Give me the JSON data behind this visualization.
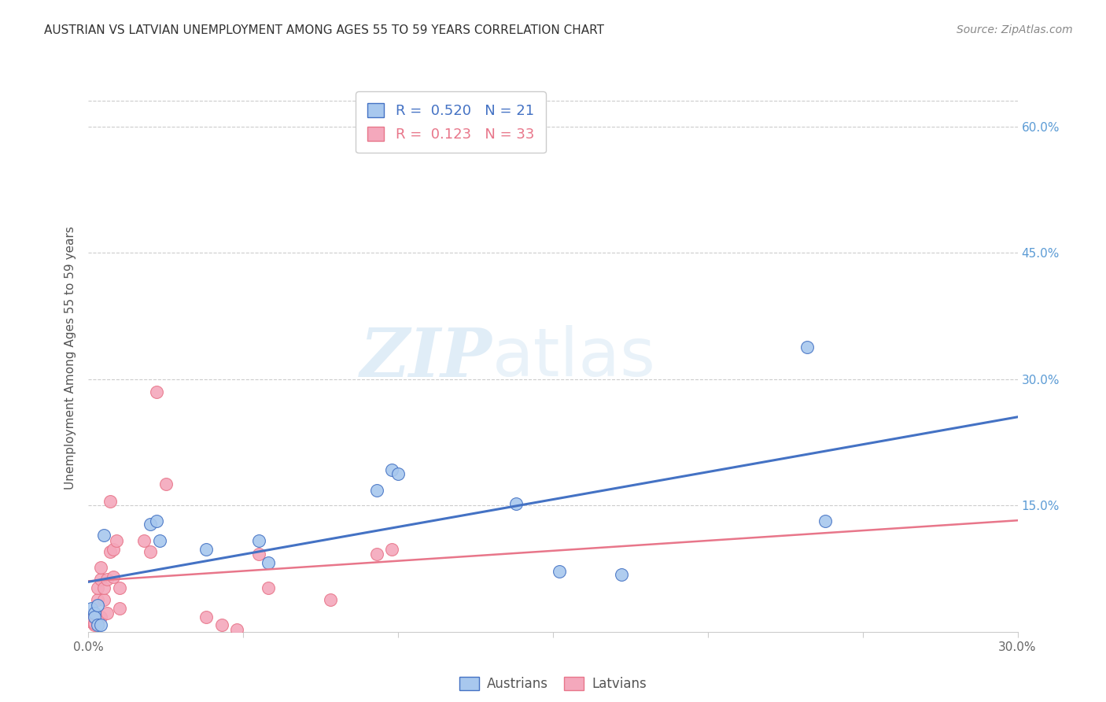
{
  "title": "AUSTRIAN VS LATVIAN UNEMPLOYMENT AMONG AGES 55 TO 59 YEARS CORRELATION CHART",
  "source": "Source: ZipAtlas.com",
  "ylabel": "Unemployment Among Ages 55 to 59 years",
  "xlim": [
    0.0,
    0.3
  ],
  "ylim": [
    0.0,
    0.65
  ],
  "xticks": [
    0.0,
    0.05,
    0.1,
    0.15,
    0.2,
    0.25,
    0.3
  ],
  "xtick_labels": [
    "0.0%",
    "",
    "",
    "",
    "",
    "",
    "30.0%"
  ],
  "ytick_vals": [
    0.0,
    0.15,
    0.3,
    0.45,
    0.6
  ],
  "right_ytick_labels": [
    "15.0%",
    "30.0%",
    "45.0%",
    "60.0%"
  ],
  "color_austrians": "#A8C8EE",
  "color_latvians": "#F4A8BC",
  "color_line_austrians": "#4472C4",
  "color_line_latvians": "#E8768A",
  "R_austrians": 0.52,
  "N_austrians": 21,
  "R_latvians": 0.123,
  "N_latvians": 33,
  "watermark_zip": "ZIP",
  "watermark_atlas": "atlas",
  "austrians_x": [
    0.001,
    0.002,
    0.002,
    0.003,
    0.003,
    0.004,
    0.005,
    0.02,
    0.022,
    0.023,
    0.038,
    0.055,
    0.058,
    0.093,
    0.098,
    0.1,
    0.138,
    0.152,
    0.172,
    0.232,
    0.238
  ],
  "austrians_y": [
    0.028,
    0.022,
    0.018,
    0.032,
    0.008,
    0.008,
    0.115,
    0.128,
    0.132,
    0.108,
    0.098,
    0.108,
    0.082,
    0.168,
    0.192,
    0.188,
    0.152,
    0.072,
    0.068,
    0.338,
    0.132
  ],
  "latvians_x": [
    0.001,
    0.001,
    0.002,
    0.002,
    0.002,
    0.003,
    0.003,
    0.004,
    0.004,
    0.004,
    0.005,
    0.005,
    0.006,
    0.006,
    0.007,
    0.007,
    0.008,
    0.008,
    0.009,
    0.01,
    0.01,
    0.018,
    0.02,
    0.022,
    0.025,
    0.038,
    0.043,
    0.048,
    0.055,
    0.058,
    0.078,
    0.093,
    0.098
  ],
  "latvians_y": [
    0.018,
    0.012,
    0.008,
    0.01,
    0.022,
    0.038,
    0.052,
    0.018,
    0.062,
    0.076,
    0.038,
    0.052,
    0.022,
    0.062,
    0.095,
    0.155,
    0.065,
    0.098,
    0.108,
    0.052,
    0.028,
    0.108,
    0.095,
    0.285,
    0.175,
    0.018,
    0.008,
    0.003,
    0.092,
    0.052,
    0.038,
    0.092,
    0.098
  ]
}
